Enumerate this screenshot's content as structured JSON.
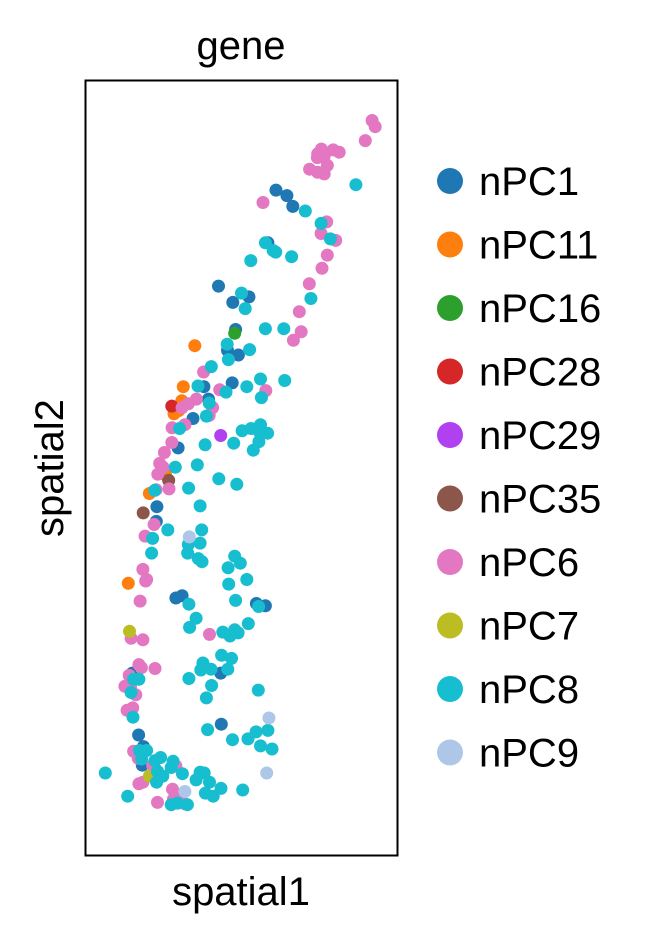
{
  "chart_data": {
    "type": "scatter",
    "title": "gene",
    "xlabel": "spatial1",
    "ylabel": "spatial2",
    "xlim": [
      0,
      100
    ],
    "ylim": [
      0,
      100
    ],
    "ticks": "none",
    "grid": false,
    "legend_placement": "right",
    "series": [
      {
        "name": "nPC1",
        "color": "#1f77b4",
        "points": [
          [
            61.1,
            85.9
          ],
          [
            64.6,
            85.2
          ],
          [
            66.5,
            83.8
          ],
          [
            58.5,
            79.1
          ],
          [
            42.6,
            73.5
          ],
          [
            47.2,
            71.4
          ],
          [
            52.4,
            72.1
          ],
          [
            48.1,
            67.9
          ],
          [
            49.0,
            64.6
          ],
          [
            45.5,
            65.2
          ],
          [
            37.9,
            60.5
          ],
          [
            39.4,
            58.9
          ],
          [
            47.0,
            61.0
          ],
          [
            34.4,
            56.4
          ],
          [
            29.6,
            52.6
          ],
          [
            22.8,
            45.0
          ],
          [
            22.6,
            43.1
          ],
          [
            28.9,
            33.2
          ],
          [
            30.9,
            33.5
          ],
          [
            54.8,
            32.5
          ],
          [
            57.7,
            32.2
          ],
          [
            14.9,
            23.5
          ],
          [
            16.9,
            15.5
          ],
          [
            18.5,
            14.0
          ],
          [
            22.1,
            11.2
          ],
          [
            43.5,
            16.9
          ],
          [
            43.3,
            23.5
          ],
          [
            18.1,
            11.6
          ]
        ]
      },
      {
        "name": "nPC11",
        "color": "#ff7f0e",
        "points": [
          [
            35.0,
            65.8
          ],
          [
            31.3,
            60.5
          ],
          [
            30.8,
            58.7
          ],
          [
            29.8,
            57.4
          ],
          [
            28.3,
            57.0
          ],
          [
            25.6,
            49.1
          ],
          [
            20.4,
            46.7
          ],
          [
            13.6,
            35.1
          ]
        ]
      },
      {
        "name": "nPC16",
        "color": "#2ca02c",
        "points": [
          [
            47.8,
            67.4
          ]
        ]
      },
      {
        "name": "nPC28",
        "color": "#d62728",
        "points": [
          [
            27.6,
            58.0
          ]
        ]
      },
      {
        "name": "nPC29",
        "color": "#b040f0",
        "points": [
          [
            43.3,
            54.2
          ]
        ]
      },
      {
        "name": "nPC35",
        "color": "#8c564b",
        "points": [
          [
            26.6,
            48.4
          ],
          [
            18.4,
            44.2
          ]
        ]
      },
      {
        "name": "nPC6",
        "color": "#e377c2",
        "points": [
          [
            93.0,
            94.1
          ],
          [
            92.0,
            94.9
          ],
          [
            89.8,
            92.3
          ],
          [
            74.5,
            90.6
          ],
          [
            76.6,
            90.3
          ],
          [
            76.6,
            88.0
          ],
          [
            74.5,
            88.2
          ],
          [
            74.4,
            90.1
          ],
          [
            75.7,
            91.2
          ],
          [
            79.5,
            91.1
          ],
          [
            81.4,
            90.8
          ],
          [
            71.9,
            88.6
          ],
          [
            77.6,
            89.1
          ],
          [
            56.9,
            84.3
          ],
          [
            77.4,
            81.8
          ],
          [
            75.6,
            80.3
          ],
          [
            80.3,
            79.4
          ],
          [
            77.6,
            77.5
          ],
          [
            75.9,
            75.8
          ],
          [
            71.8,
            73.8
          ],
          [
            68.6,
            70.2
          ],
          [
            69.2,
            67.6
          ],
          [
            66.7,
            66.5
          ],
          [
            37.8,
            62.4
          ],
          [
            43.0,
            60.1
          ],
          [
            57.8,
            60.0
          ],
          [
            35.5,
            58.9
          ],
          [
            32.9,
            58.3
          ],
          [
            30.9,
            57.8
          ],
          [
            40.7,
            57.8
          ],
          [
            39.6,
            56.8
          ],
          [
            31.8,
            55.6
          ],
          [
            27.7,
            55.2
          ],
          [
            27.6,
            53.3
          ],
          [
            25.2,
            52.0
          ],
          [
            23.7,
            50.6
          ],
          [
            24.8,
            50.1
          ],
          [
            23.1,
            49.2
          ],
          [
            26.7,
            47.3
          ],
          [
            22.5,
            47.2
          ],
          [
            21.9,
            42.7
          ],
          [
            19.0,
            41.2
          ],
          [
            18.3,
            36.9
          ],
          [
            19.2,
            35.4
          ],
          [
            19.5,
            35.6
          ],
          [
            17.4,
            32.8
          ],
          [
            39.7,
            28.5
          ],
          [
            14.5,
            28.0
          ],
          [
            18.3,
            27.8
          ],
          [
            17.8,
            24.2
          ],
          [
            17.0,
            24.6
          ],
          [
            13.9,
            23.2
          ],
          [
            22.2,
            24.1
          ],
          [
            14.3,
            21.7
          ],
          [
            16.0,
            20.7
          ],
          [
            12.5,
            21.8
          ],
          [
            15.0,
            19.0
          ],
          [
            13.2,
            18.7
          ],
          [
            16.8,
            12.5
          ],
          [
            21.4,
            11.6
          ],
          [
            28.9,
            11.5
          ],
          [
            18.3,
            9.4
          ],
          [
            17.0,
            9.2
          ],
          [
            15.3,
            13.4
          ],
          [
            27.8,
            8.5
          ],
          [
            29.5,
            7.7
          ],
          [
            28.1,
            7.2
          ],
          [
            23.0,
            6.8
          ],
          [
            31.8,
            6.6
          ]
        ]
      },
      {
        "name": "nPC7",
        "color": "#bcbd22",
        "points": [
          [
            14.0,
            28.9
          ],
          [
            20.4,
            10.2
          ]
        ]
      },
      {
        "name": "nPC8",
        "color": "#17becf",
        "points": [
          [
            86.8,
            86.6
          ],
          [
            70.5,
            83.2
          ],
          [
            75.6,
            81.6
          ],
          [
            78.6,
            79.6
          ],
          [
            57.7,
            79.1
          ],
          [
            60.2,
            78.1
          ],
          [
            66.1,
            77.3
          ],
          [
            53.0,
            76.8
          ],
          [
            61.0,
            77.9
          ],
          [
            50.0,
            72.6
          ],
          [
            72.3,
            71.9
          ],
          [
            51.2,
            70.6
          ],
          [
            57.7,
            68.0
          ],
          [
            63.6,
            68.0
          ],
          [
            45.4,
            66.0
          ],
          [
            52.6,
            65.3
          ],
          [
            45.8,
            64.0
          ],
          [
            40.3,
            63.1
          ],
          [
            36.0,
            60.6
          ],
          [
            45.0,
            59.8
          ],
          [
            51.7,
            60.5
          ],
          [
            63.9,
            61.3
          ],
          [
            56.1,
            61.5
          ],
          [
            56.4,
            59.1
          ],
          [
            39.6,
            58.4
          ],
          [
            30.1,
            55.1
          ],
          [
            38.7,
            56.7
          ],
          [
            56.1,
            55.6
          ],
          [
            53.1,
            55.1
          ],
          [
            55.9,
            54.6
          ],
          [
            58.4,
            54.5
          ],
          [
            50.2,
            54.8
          ],
          [
            55.6,
            53.4
          ],
          [
            38.3,
            53.0
          ],
          [
            47.5,
            53.2
          ],
          [
            53.8,
            52.3
          ],
          [
            35.8,
            50.4
          ],
          [
            28.7,
            50.1
          ],
          [
            42.7,
            48.6
          ],
          [
            48.5,
            47.9
          ],
          [
            33.0,
            47.4
          ],
          [
            22.1,
            47.1
          ],
          [
            36.7,
            45.1
          ],
          [
            26.3,
            42.0
          ],
          [
            21.4,
            40.9
          ],
          [
            37.2,
            42.0
          ],
          [
            21.1,
            39.0
          ],
          [
            32.9,
            40.1
          ],
          [
            36.7,
            40.3
          ],
          [
            36.1,
            38.3
          ],
          [
            32.7,
            39.0
          ],
          [
            47.8,
            38.6
          ],
          [
            49.6,
            37.7
          ],
          [
            45.7,
            37.1
          ],
          [
            37.3,
            37.9
          ],
          [
            45.9,
            35.0
          ],
          [
            51.7,
            35.6
          ],
          [
            33.1,
            32.4
          ],
          [
            55.5,
            32.1
          ],
          [
            48.1,
            32.9
          ],
          [
            35.4,
            30.6
          ],
          [
            52.2,
            29.9
          ],
          [
            47.8,
            29.1
          ],
          [
            44.0,
            28.8
          ],
          [
            33.3,
            29.4
          ],
          [
            46.3,
            28.3
          ],
          [
            48.9,
            28.7
          ],
          [
            43.6,
            25.8
          ],
          [
            46.8,
            25.4
          ],
          [
            37.6,
            24.8
          ],
          [
            45.6,
            24.0
          ],
          [
            36.9,
            23.9
          ],
          [
            40.2,
            24.0
          ],
          [
            33.1,
            22.8
          ],
          [
            40.4,
            21.9
          ],
          [
            55.4,
            21.3
          ],
          [
            15.3,
            22.7
          ],
          [
            14.5,
            21.0
          ],
          [
            17.0,
            22.7
          ],
          [
            38.7,
            20.3
          ],
          [
            15.1,
            17.8
          ],
          [
            39.1,
            16.2
          ],
          [
            58.5,
            16.1
          ],
          [
            54.7,
            15.9
          ],
          [
            52.1,
            15.0
          ],
          [
            47.1,
            14.9
          ],
          [
            56.1,
            14.1
          ],
          [
            59.8,
            13.7
          ],
          [
            17.2,
            13.5
          ],
          [
            19.5,
            13.5
          ],
          [
            17.9,
            12.4
          ],
          [
            22.2,
            12.2
          ],
          [
            28.0,
            12.1
          ],
          [
            24.0,
            12.6
          ],
          [
            27.4,
            11.3
          ],
          [
            23.0,
            10.8
          ],
          [
            31.0,
            10.5
          ],
          [
            24.7,
            10.2
          ],
          [
            36.7,
            10.7
          ],
          [
            38.0,
            10.6
          ],
          [
            35.4,
            9.7
          ],
          [
            6.2,
            10.6
          ],
          [
            22.7,
            9.4
          ],
          [
            39.7,
            9.4
          ],
          [
            43.4,
            8.6
          ],
          [
            50.4,
            8.4
          ],
          [
            38.4,
            8.0
          ],
          [
            40.9,
            7.6
          ],
          [
            13.4,
            7.6
          ],
          [
            29.5,
            6.7
          ],
          [
            32.6,
            6.5
          ],
          [
            27.4,
            6.5
          ]
        ]
      },
      {
        "name": "nPC9",
        "color": "#aec7e8",
        "points": [
          [
            33.2,
            41.1
          ],
          [
            58.8,
            17.7
          ],
          [
            58.1,
            10.6
          ],
          [
            31.8,
            8.2
          ]
        ]
      }
    ]
  }
}
